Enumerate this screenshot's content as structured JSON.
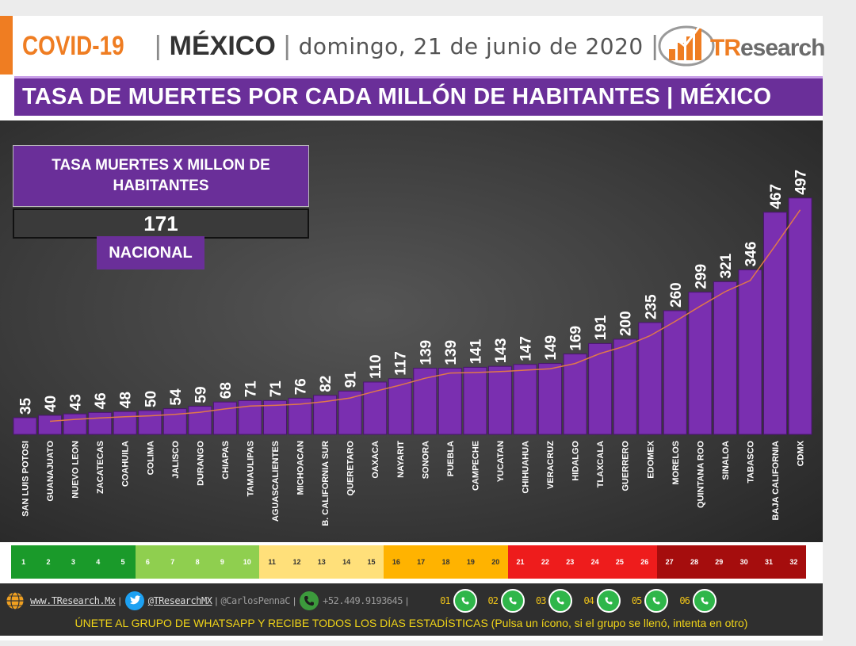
{
  "header": {
    "covid": "COVID-19",
    "sep1": "|",
    "country": "MÉXICO",
    "sep2": "|",
    "date": "domingo, 21 de junio de 2020",
    "sep3": "|",
    "logo_tr": "TR",
    "logo_rest": "esearch"
  },
  "title": "TASA DE MUERTES POR CADA MILLÓN DE HABITANTES | MÉXICO",
  "national": {
    "title": "TASA MUERTES X MILLON DE HABITANTES",
    "value": "171",
    "label": "NACIONAL"
  },
  "colors": {
    "accent": "#6a2f99",
    "orange": "#ef7d22",
    "bar": "#7a2fb0",
    "trend": "#e0784a"
  },
  "chart_data": {
    "type": "bar",
    "categories": [
      "SAN LUIS POTOSI",
      "GUANAJUATO",
      "NUEVO LEON",
      "ZACATECAS",
      "COAHUILA",
      "COLIMA",
      "JALISCO",
      "DURANGO",
      "CHIAPAS",
      "TAMAULIPAS",
      "AGUASCALIENTES",
      "MICHOACAN",
      "B. CALIFORNIA SUR",
      "QUERETARO",
      "OAXACA",
      "NAYARIT",
      "SONORA",
      "PUEBLA",
      "CAMPECHE",
      "YUCATAN",
      "CHIHUAHUA",
      "VERACRUZ",
      "HIDALGO",
      "TLAXCALA",
      "GUERRERO",
      "EDOMEX",
      "MORELOS",
      "QUINTANA ROO",
      "SINALOA",
      "TABASCO",
      "BAJA CALIFORNIA",
      "CDMX"
    ],
    "values": [
      35,
      40,
      43,
      46,
      48,
      50,
      54,
      59,
      68,
      71,
      71,
      76,
      82,
      91,
      110,
      117,
      139,
      139,
      141,
      143,
      147,
      149,
      169,
      191,
      200,
      235,
      260,
      299,
      321,
      346,
      467,
      497
    ],
    "title": "TASA DE MUERTES POR CADA MILLÓN DE HABITANTES | MÉXICO",
    "xlabel": "",
    "ylabel": "",
    "ylim": [
      0,
      510
    ],
    "trendline": true,
    "grid": false
  },
  "scale": {
    "numbers": [
      "1",
      "2",
      "3",
      "4",
      "5",
      "6",
      "7",
      "8",
      "9",
      "10",
      "11",
      "12",
      "13",
      "14",
      "15",
      "16",
      "17",
      "18",
      "19",
      "20",
      "21",
      "22",
      "23",
      "24",
      "25",
      "26",
      "27",
      "28",
      "29",
      "30",
      "31",
      "32"
    ],
    "colors": [
      "#1a9a2a",
      "#1a9a2a",
      "#1a9a2a",
      "#1a9a2a",
      "#1a9a2a",
      "#8fcf4f",
      "#8fcf4f",
      "#8fcf4f",
      "#8fcf4f",
      "#8fcf4f",
      "#ffe07a",
      "#ffe07a",
      "#ffe07a",
      "#ffe07a",
      "#ffe07a",
      "#ffb300",
      "#ffb300",
      "#ffb300",
      "#ffb300",
      "#ffb300",
      "#ee1c1c",
      "#ee1c1c",
      "#ee1c1c",
      "#ee1c1c",
      "#ee1c1c",
      "#ee1c1c",
      "#a50d0d",
      "#a50d0d",
      "#a50d0d",
      "#a50d0d",
      "#a50d0d",
      "#a50d0d"
    ]
  },
  "footer": {
    "site": "www.TResearch.Mx",
    "twitter": "@TResearchMX",
    "twitter2": "@CarlosPennaC",
    "phone": "+52.449.9193645",
    "groups": [
      "01",
      "02",
      "03",
      "04",
      "05",
      "06"
    ],
    "message": "ÚNETE AL GRUPO DE WHATSAPP Y RECIBE TODOS LOS DÍAS ESTADÍSTICAS (Pulsa un ícono, si el grupo se llenó, intenta en otro)"
  }
}
